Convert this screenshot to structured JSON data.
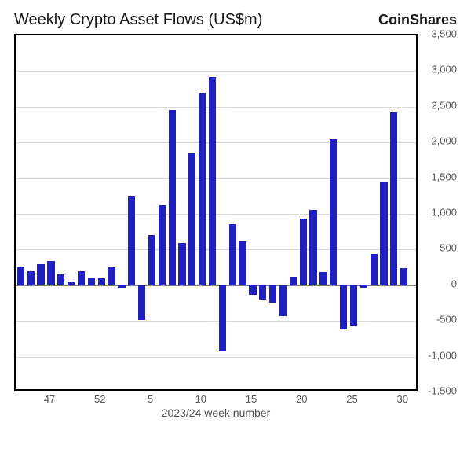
{
  "chart": {
    "type": "bar",
    "title": "Weekly Crypto Asset Flows (US$m)",
    "brand": "CoinShares",
    "x_axis_title": "2023/24 week number",
    "title_fontsize": 20,
    "brand_fontsize": 18,
    "tick_fontsize": 13,
    "axis_title_fontsize": 14,
    "background_color": "#ffffff",
    "border_color": "#000000",
    "grid_color": "#d9d9d9",
    "zero_line_color": "#808080",
    "bar_color": "#2020c0",
    "ylim": [
      -1500,
      3500
    ],
    "ytick_step": 500,
    "yticks": [
      -1500,
      -1000,
      -500,
      0,
      500,
      1000,
      1500,
      2000,
      2500,
      3000,
      3500
    ],
    "x_labels_shown": [
      47,
      52,
      5,
      10,
      15,
      20,
      25,
      30
    ],
    "bar_width_ratio": 0.72,
    "weeks": [
      44,
      45,
      46,
      47,
      48,
      49,
      50,
      51,
      52,
      1,
      2,
      3,
      4,
      5,
      6,
      7,
      8,
      9,
      10,
      11,
      12,
      13,
      14,
      15,
      16,
      17,
      18,
      19,
      20,
      21,
      22,
      23,
      24,
      25,
      26,
      27,
      28,
      29,
      30,
      31
    ],
    "values": [
      260,
      200,
      290,
      340,
      150,
      40,
      200,
      100,
      100,
      250,
      -30,
      1250,
      -490,
      700,
      1120,
      2450,
      590,
      1850,
      2700,
      2920,
      -930,
      860,
      620,
      -130,
      -200,
      -250,
      -430,
      120,
      930,
      1060,
      190,
      2050,
      -620,
      -580,
      -30,
      440,
      1440,
      2420,
      240,
      0
    ]
  }
}
